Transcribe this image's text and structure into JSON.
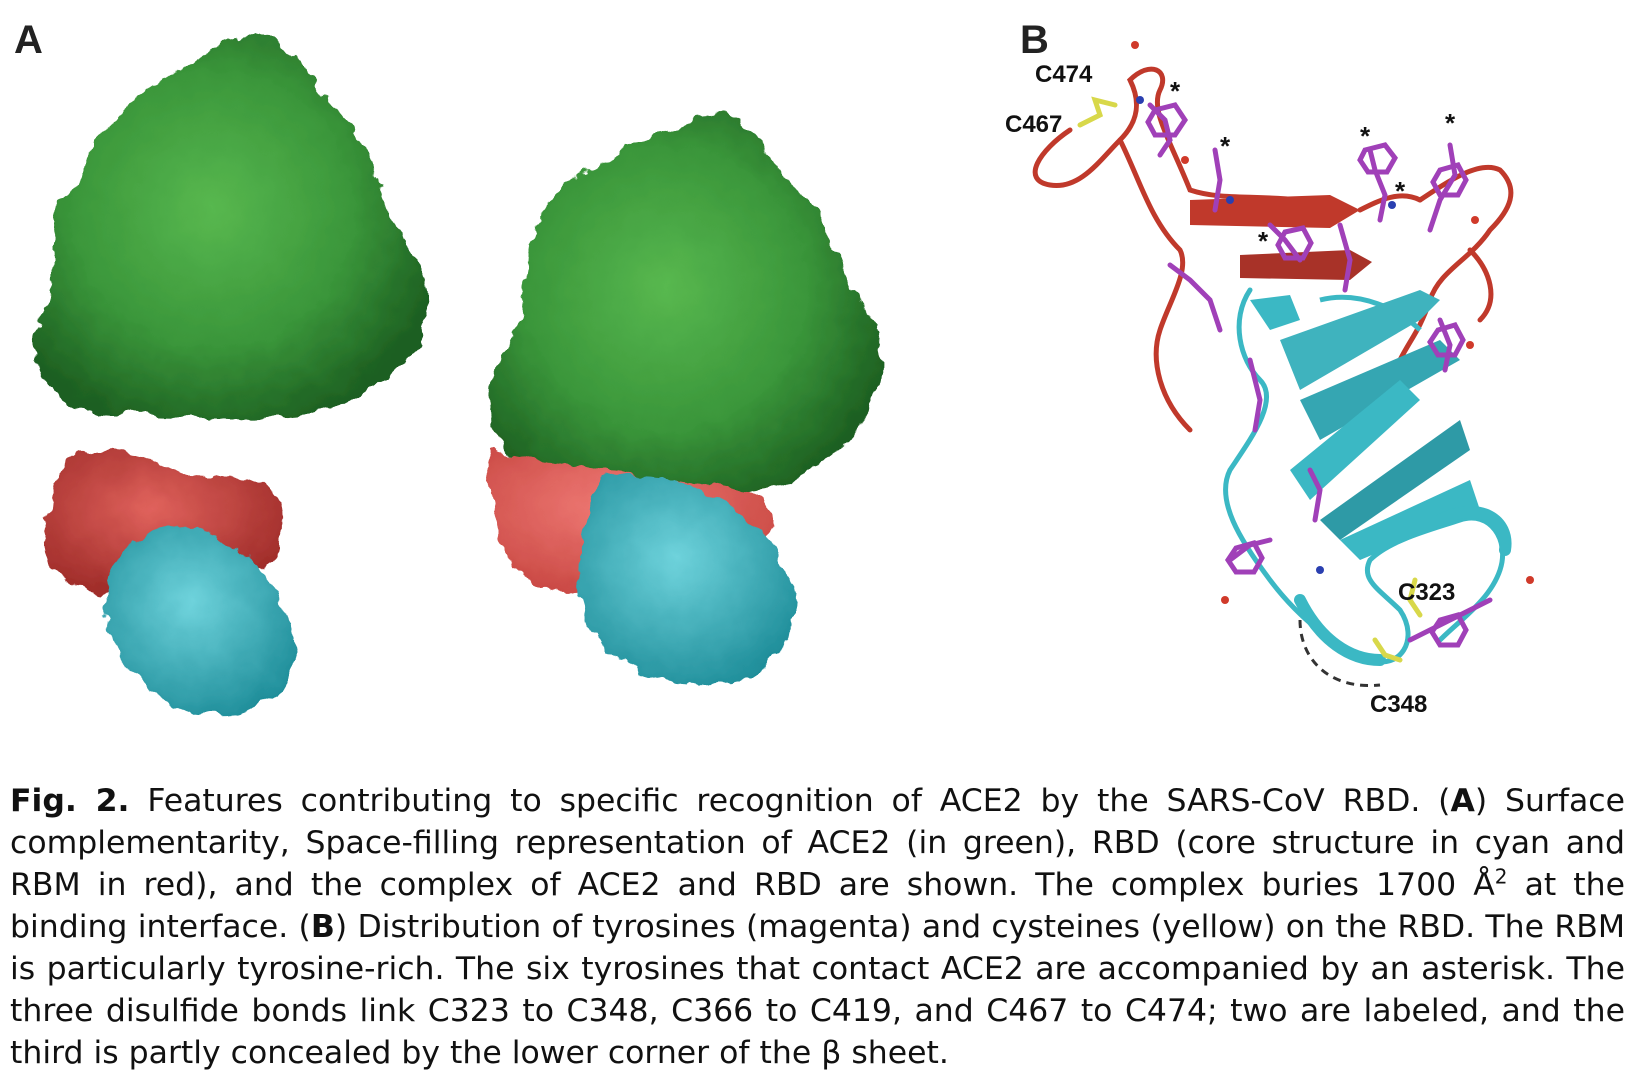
{
  "panels": {
    "a_letter": "A",
    "b_letter": "B"
  },
  "labels": {
    "c474": "C474",
    "c467": "C467",
    "c323": "C323",
    "c348": "C348",
    "asterisk": "*"
  },
  "colors": {
    "ace2_green": "#2f8a2f",
    "rbm_red": "#c8423e",
    "core_cyan": "#3bb8c4",
    "tyrosine_magenta": "#a040b8",
    "cysteine_yellow": "#d8d84a",
    "ribbon_red": "#c0392b"
  },
  "caption": {
    "fig_number": "Fig. 2.",
    "part1": " Features contributing to specific recognition of ACE2 by the SARS-CoV RBD. (",
    "a_ref": "A",
    "part2": ") Surface complementarity, Space-filling representation of ACE2 (in green), RBD (core structure in cyan and RBM in red), and the complex of ACE2 and RBD are shown. The complex buries 1700 Å",
    "sup": "2",
    "part3": " at the binding interface. (",
    "b_ref": "B",
    "part4": ") Distribution of tyrosines (magenta) and cysteines (yellow) on the RBD. The RBM is particularly tyrosine-rich. The six tyrosines that contact ACE2 are accompanied by an asterisk. The three disulfide bonds link C323 to C348, C366 to C419, and C467 to C474; two are labeled, and the third is partly concealed by the lower corner of the β sheet."
  }
}
